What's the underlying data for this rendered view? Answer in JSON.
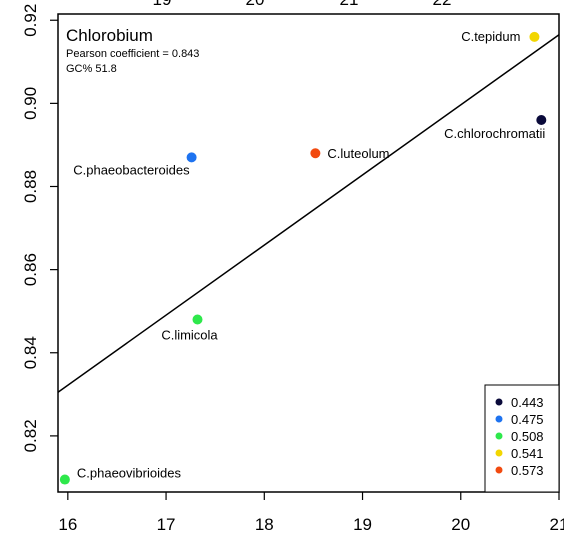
{
  "chart_data": {
    "type": "scatter",
    "title": "Chlorobium",
    "annotations": [
      "Pearson coefficient = 0.843",
      "GC% 51.8"
    ],
    "xlabel": "",
    "ylabel": "",
    "xlim": [
      15.9,
      21.0
    ],
    "ylim": [
      0.8065,
      0.9215
    ],
    "x_ticks": [
      "16",
      "17",
      "18",
      "19",
      "20",
      "21"
    ],
    "y_ticks": [
      "0.82",
      "0.84",
      "0.86",
      "0.88",
      "0.90",
      "0.92"
    ],
    "top_x_ticks": [
      "19",
      "20",
      "21",
      "22"
    ],
    "points": [
      {
        "label": "C.tepidum",
        "x": 20.75,
        "y": 0.916,
        "color": "#F2D600"
      },
      {
        "label": "C.chlorochromatii",
        "x": 20.82,
        "y": 0.896,
        "color": "#0A0A3A"
      },
      {
        "label": "C.luteolum",
        "x": 18.52,
        "y": 0.888,
        "color": "#F24A0F"
      },
      {
        "label": "C.phaeobacteroides",
        "x": 17.26,
        "y": 0.887,
        "color": "#1E73F0"
      },
      {
        "label": "C.limicola",
        "x": 17.32,
        "y": 0.848,
        "color": "#2EE84B"
      },
      {
        "label": "C.phaeovibrioides",
        "x": 15.97,
        "y": 0.8095,
        "color": "#2EE84B"
      }
    ],
    "fit_line": {
      "x": [
        15.9,
        21.0
      ],
      "y": [
        0.8305,
        0.9165
      ]
    },
    "legend": {
      "position": "bottom-right",
      "entries": [
        {
          "label": "0.443",
          "color": "#0A0A3A"
        },
        {
          "label": "0.475",
          "color": "#1E73F0"
        },
        {
          "label": "0.508",
          "color": "#2EE84B"
        },
        {
          "label": "0.541",
          "color": "#F2D600"
        },
        {
          "label": "0.573",
          "color": "#F24A0F"
        }
      ]
    },
    "grid": false
  }
}
